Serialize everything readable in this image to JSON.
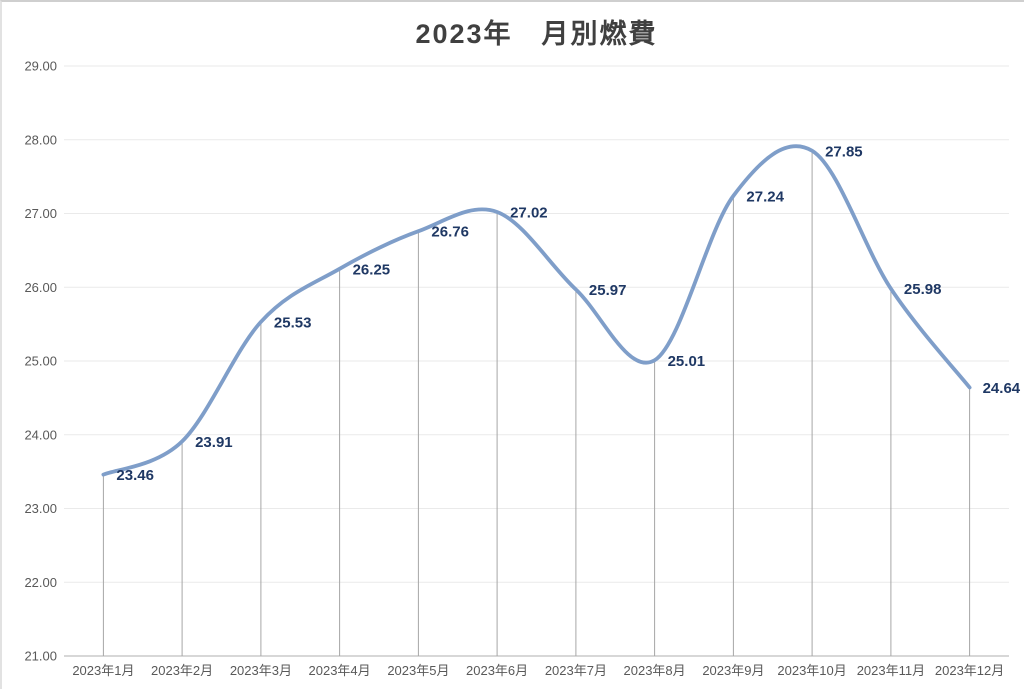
{
  "chart_data": {
    "type": "line",
    "title": "2023年　月別燃費",
    "categories": [
      "2023年1月",
      "2023年2月",
      "2023年3月",
      "2023年4月",
      "2023年5月",
      "2023年6月",
      "2023年7月",
      "2023年8月",
      "2023年9月",
      "2023年10月",
      "2023年11月",
      "2023年12月"
    ],
    "values": [
      23.46,
      23.91,
      25.53,
      26.25,
      26.76,
      27.02,
      25.97,
      25.01,
      27.24,
      27.85,
      25.98,
      24.64
    ],
    "data_labels": [
      "23.46",
      "23.91",
      "25.53",
      "26.25",
      "26.76",
      "27.02",
      "25.97",
      "25.01",
      "27.24",
      "27.85",
      "25.98",
      "24.64"
    ],
    "yticks": [
      "21.00",
      "22.00",
      "23.00",
      "24.00",
      "25.00",
      "26.00",
      "27.00",
      "28.00",
      "29.00"
    ],
    "ylim": [
      21,
      29
    ],
    "xlabel": "",
    "ylabel": "",
    "legend": "none",
    "grid": "horizontal",
    "smooth_line": true,
    "drop_lines": true,
    "colors": {
      "line": "#7F9EC9",
      "data_label": "#1F3864",
      "axis_label": "#595959",
      "title": "#404040",
      "gridline": "#EAEAEA",
      "axis_line": "#BFBFBF",
      "drop_line": "#A6A6A6",
      "border": "#CFCFCF",
      "background": "#FFFFFF"
    }
  }
}
